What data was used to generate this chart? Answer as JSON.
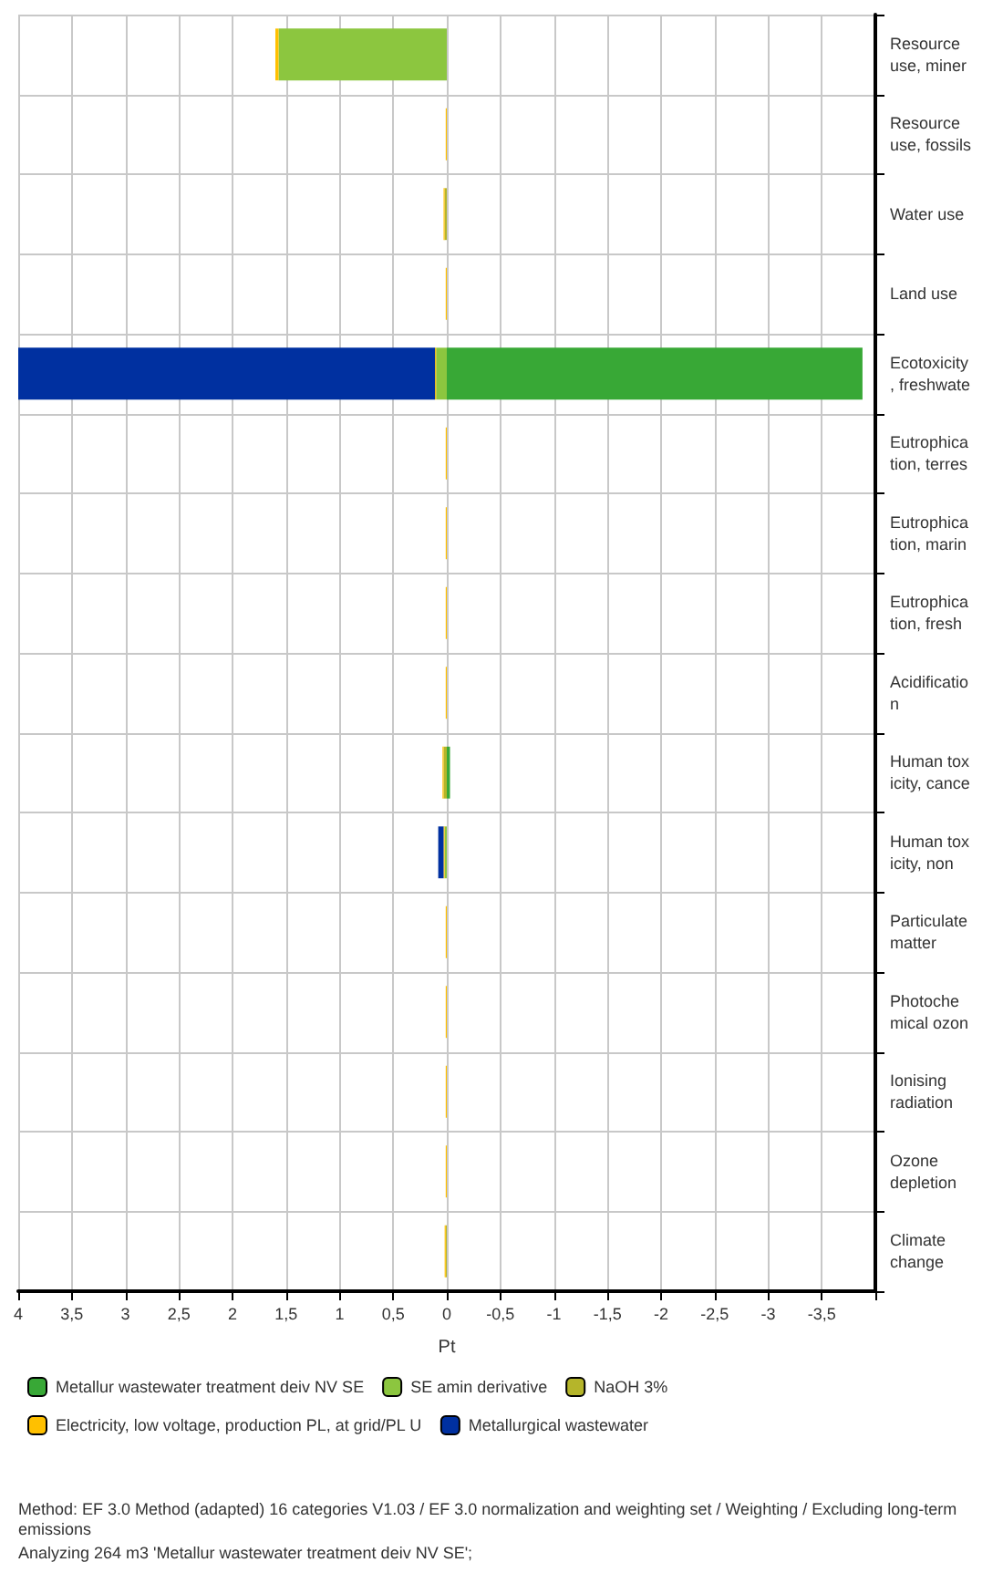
{
  "chart_data": {
    "type": "bar",
    "stacked": true,
    "orientation": "horizontal",
    "categories": [
      "Resource\nuse, miner",
      "Resource\nuse, fossils",
      "Water use",
      "Land use",
      "Ecotoxicity\n, freshwate",
      "Eutrophica\ntion, terres",
      "Eutrophica\ntion, marin",
      "Eutrophica\ntion, fresh",
      "Acidificatio\nn",
      "Human tox\nicity, cance",
      "Human tox\nicity, non",
      "Particulate\nmatter",
      "Photoche\nmical ozon",
      "Ionising\nradiation",
      "Ozone\ndepletion",
      "Climate\nchange"
    ],
    "series": [
      {
        "name": "Metallur wastewater treatment deiv NV SE",
        "color": "#38a836",
        "values": [
          null,
          null,
          null,
          null,
          -3.88,
          null,
          null,
          null,
          null,
          -0.03,
          null,
          null,
          null,
          null,
          null,
          null
        ]
      },
      {
        "name": "SE amin derivative",
        "color": "#8cc63f",
        "values": [
          1.57,
          null,
          null,
          null,
          0.1,
          null,
          null,
          null,
          null,
          null,
          0.02,
          null,
          null,
          null,
          null,
          null
        ]
      },
      {
        "name": "NaOH 3%",
        "color": "#b5b52a",
        "values": [
          null,
          null,
          0.02,
          null,
          null,
          null,
          null,
          null,
          null,
          0.03,
          null,
          null,
          null,
          null,
          null,
          0.01
        ]
      },
      {
        "name": "Electricity, low voltage, production PL, at grid/PL U",
        "color": "#ffc000",
        "values": [
          0.03,
          0.01,
          0.01,
          0.01,
          0.01,
          0.01,
          0.01,
          0.01,
          0.01,
          0.01,
          0.01,
          0.01,
          0.01,
          0.01,
          0.01,
          0.01
        ]
      },
      {
        "name": "Metallurgical wastewater",
        "color": "#0030a0",
        "values": [
          null,
          null,
          null,
          null,
          3.9,
          null,
          null,
          null,
          null,
          null,
          0.05,
          null,
          null,
          null,
          null,
          null
        ]
      }
    ],
    "xlabel": "Pt",
    "xlim": [
      4,
      -4
    ],
    "xticks": [
      {
        "value": 4,
        "label": "4"
      },
      {
        "value": 3.5,
        "label": "3,5"
      },
      {
        "value": 3,
        "label": "3"
      },
      {
        "value": 2.5,
        "label": "2,5"
      },
      {
        "value": 2,
        "label": "2"
      },
      {
        "value": 1.5,
        "label": "1,5"
      },
      {
        "value": 1,
        "label": "1"
      },
      {
        "value": 0.5,
        "label": "0,5"
      },
      {
        "value": 0,
        "label": "0"
      },
      {
        "value": -0.5,
        "label": "-0,5"
      },
      {
        "value": -1,
        "label": "-1"
      },
      {
        "value": -1.5,
        "label": "-1,5"
      },
      {
        "value": -2,
        "label": "-2"
      },
      {
        "value": -2.5,
        "label": "-2,5"
      },
      {
        "value": -3,
        "label": "-3"
      },
      {
        "value": -3.5,
        "label": "-3,5"
      },
      {
        "value": -4,
        "label": null
      }
    ],
    "grid": true,
    "legend": "bottom",
    "annotations": [
      "Method: EF 3.0 Method (adapted) 16 categories V1.03 / EF 3.0 normalization and weighting set / Weighting / Excluding long-term emissions",
      "Analyzing 264 m3 'Metallur wastewater treatment deiv NV SE';"
    ]
  }
}
